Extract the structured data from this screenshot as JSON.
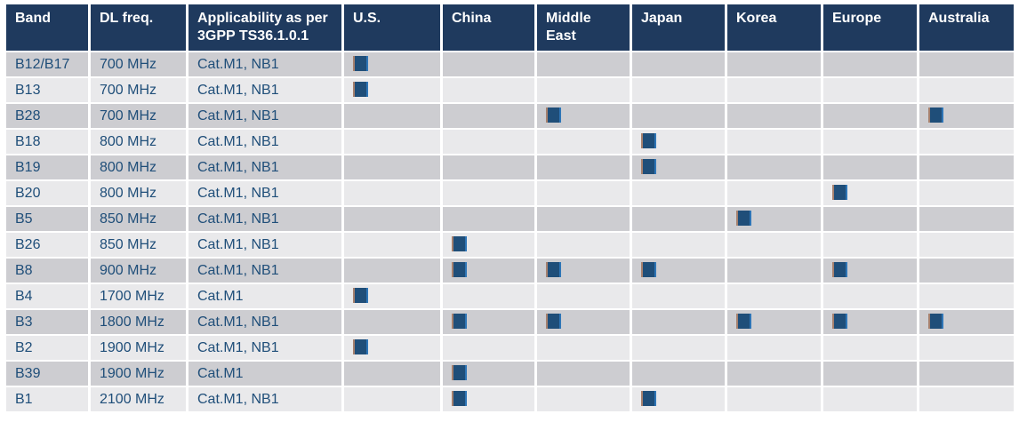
{
  "table": {
    "columns": [
      {
        "key": "band",
        "label": "Band",
        "type": "text"
      },
      {
        "key": "dl_freq",
        "label": "DL freq.",
        "type": "text"
      },
      {
        "key": "applicability",
        "label": "Applicability as per 3GPP TS36.1.0.1",
        "type": "text"
      },
      {
        "key": "us",
        "label": "U.S.",
        "type": "region"
      },
      {
        "key": "china",
        "label": "China",
        "type": "region"
      },
      {
        "key": "middle_east",
        "label": "Middle East",
        "type": "region",
        "wrap": true
      },
      {
        "key": "japan",
        "label": "Japan",
        "type": "region"
      },
      {
        "key": "korea",
        "label": "Korea",
        "type": "region"
      },
      {
        "key": "europe",
        "label": "Europe",
        "type": "region"
      },
      {
        "key": "australia",
        "label": "Australia",
        "type": "region"
      }
    ],
    "rows": [
      {
        "band": "B12/B17",
        "dl_freq": "700 MHz",
        "applicability": "Cat.M1, NB1",
        "regions": [
          "us"
        ]
      },
      {
        "band": "B13",
        "dl_freq": "700 MHz",
        "applicability": "Cat.M1, NB1",
        "regions": [
          "us"
        ]
      },
      {
        "band": "B28",
        "dl_freq": "700 MHz",
        "applicability": "Cat.M1, NB1",
        "regions": [
          "middle_east",
          "australia"
        ]
      },
      {
        "band": "B18",
        "dl_freq": "800 MHz",
        "applicability": "Cat.M1, NB1",
        "regions": [
          "japan"
        ]
      },
      {
        "band": "B19",
        "dl_freq": "800 MHz",
        "applicability": "Cat.M1, NB1",
        "regions": [
          "japan"
        ]
      },
      {
        "band": "B20",
        "dl_freq": "800 MHz",
        "applicability": "Cat.M1, NB1",
        "regions": [
          "europe"
        ]
      },
      {
        "band": "B5",
        "dl_freq": "850 MHz",
        "applicability": "Cat.M1, NB1",
        "regions": [
          "korea"
        ]
      },
      {
        "band": "B26",
        "dl_freq": "850 MHz",
        "applicability": "Cat.M1, NB1",
        "regions": [
          "china"
        ]
      },
      {
        "band": "B8",
        "dl_freq": "900 MHz",
        "applicability": "Cat.M1, NB1",
        "regions": [
          "china",
          "middle_east",
          "japan",
          "europe"
        ]
      },
      {
        "band": "B4",
        "dl_freq": "1700 MHz",
        "applicability": "Cat.M1",
        "regions": [
          "us"
        ]
      },
      {
        "band": "B3",
        "dl_freq": "1800 MHz",
        "applicability": "Cat.M1, NB1",
        "regions": [
          "china",
          "middle_east",
          "korea",
          "europe",
          "australia"
        ]
      },
      {
        "band": "B2",
        "dl_freq": "1900 MHz",
        "applicability": "Cat.M1, NB1",
        "regions": [
          "us"
        ]
      },
      {
        "band": "B39",
        "dl_freq": "1900 MHz",
        "applicability": "Cat.M1",
        "regions": [
          "china"
        ]
      },
      {
        "band": "B1",
        "dl_freq": "2100 MHz",
        "applicability": "Cat.M1, NB1",
        "regions": [
          "china",
          "japan"
        ]
      }
    ],
    "marker_icon": "region-support-marker"
  },
  "colors": {
    "header_bg": "#1f3a5e",
    "header_text": "#ffffff",
    "row_dark": "#cdcdd1",
    "row_light": "#e9e9eb",
    "body_text": "#1f4e79",
    "marker_fill": "#1f4e79",
    "marker_edge_left": "#a5806e",
    "marker_edge_right": "#2e75b6",
    "page_bg": "#ffffff"
  }
}
